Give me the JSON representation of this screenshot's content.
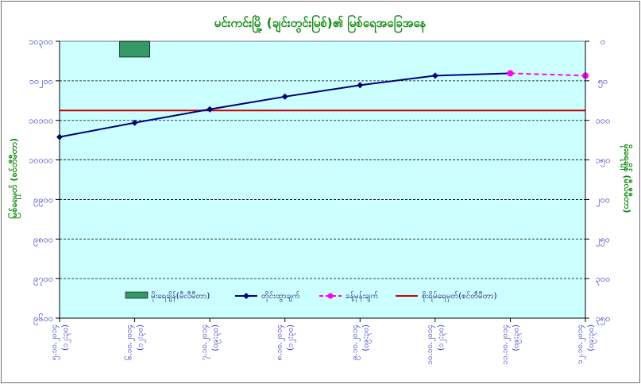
{
  "chart_data": {
    "type": "line",
    "title": "မင်းကင်းမြို့ (ချင်းတွင်းမြစ်)၏ မြစ်ရေအခြေအနေ",
    "ylabel_left": "မြစ်ရေမှတ် (စင်တီမီတာ)",
    "ylabel_right": "မိုးရေချိန် (မီလီမီတာ)",
    "left_axis": {
      "min": 9600,
      "max": 10300,
      "ticks": [
        "၉၆၀၀",
        "၉၇၀၀",
        "၉၈၀၀",
        "၉၉၀၀",
        "၁၀၀၀၀",
        "၁၀၁၀၀",
        "၁၀၂၀၀",
        "၁၀၃၀၀"
      ],
      "tick_values": [
        9600,
        9700,
        9800,
        9900,
        10000,
        10100,
        10200,
        10300
      ]
    },
    "right_axis": {
      "min": 0,
      "max": 350,
      "reversed": true,
      "ticks": [
        "၀",
        "၅၀",
        "၁၀၀",
        "၁၅၀",
        "၂၀၀",
        "၂၅၀",
        "၃၀၀",
        "၃၅၀"
      ],
      "tick_values": [
        0,
        50,
        100,
        150,
        200,
        250,
        300,
        350
      ]
    },
    "categories": [
      {
        "date": "၅.၁၀.၂၀၁၄",
        "time": "(၁၂:၃၀)"
      },
      {
        "date": "၆.၁၀.၂၀၁၄",
        "time": "(၁၂:၃၀)"
      },
      {
        "date": "၇.၁၀.၂၀၁၄",
        "time": "(၀၉:၃၀)"
      },
      {
        "date": "၈.၁၀.၂၀၁၄",
        "time": "(၁၂:၃၀)"
      },
      {
        "date": "၉.၁၀.၂၀၁၄",
        "time": "(၀၉:၃၀)"
      },
      {
        "date": "၁၀.၁၀.၂၀၁၄",
        "time": "(၁၂:၃၀)"
      },
      {
        "date": "၁၁.၁၀.၂၀၁၄",
        "time": "(၀၉:၃၀)"
      },
      {
        "date": "၁၂.၁၀.၂၀၁၄",
        "time": "(၀၉:၃၀)"
      }
    ],
    "series": [
      {
        "name": "မိုးရေချိန်(မီလီမီတာ)",
        "kind": "bar",
        "axis": "right",
        "color": "#339966",
        "values": [
          null,
          20,
          null,
          null,
          null,
          null,
          null,
          null
        ]
      },
      {
        "name": "တိုင်းထွာချက်",
        "kind": "line",
        "axis": "left",
        "color": "#000080",
        "marker": "diamond",
        "values": [
          10058,
          10094,
          10128,
          10160,
          10189,
          10213,
          10219,
          null
        ]
      },
      {
        "name": "ခန့်မှန်းချက်",
        "kind": "line-dashed",
        "axis": "left",
        "color": "#ff00ff",
        "marker": "circle",
        "values": [
          null,
          null,
          null,
          null,
          null,
          null,
          10219,
          10213
        ]
      },
      {
        "name": "စိုးရိမ်ရေမှတ်(စင်တီမီတာ)",
        "kind": "hline",
        "axis": "left",
        "color": "#cc0000",
        "value": 10125
      }
    ],
    "grid": "horizontal-dashed",
    "legend": "bottom"
  }
}
